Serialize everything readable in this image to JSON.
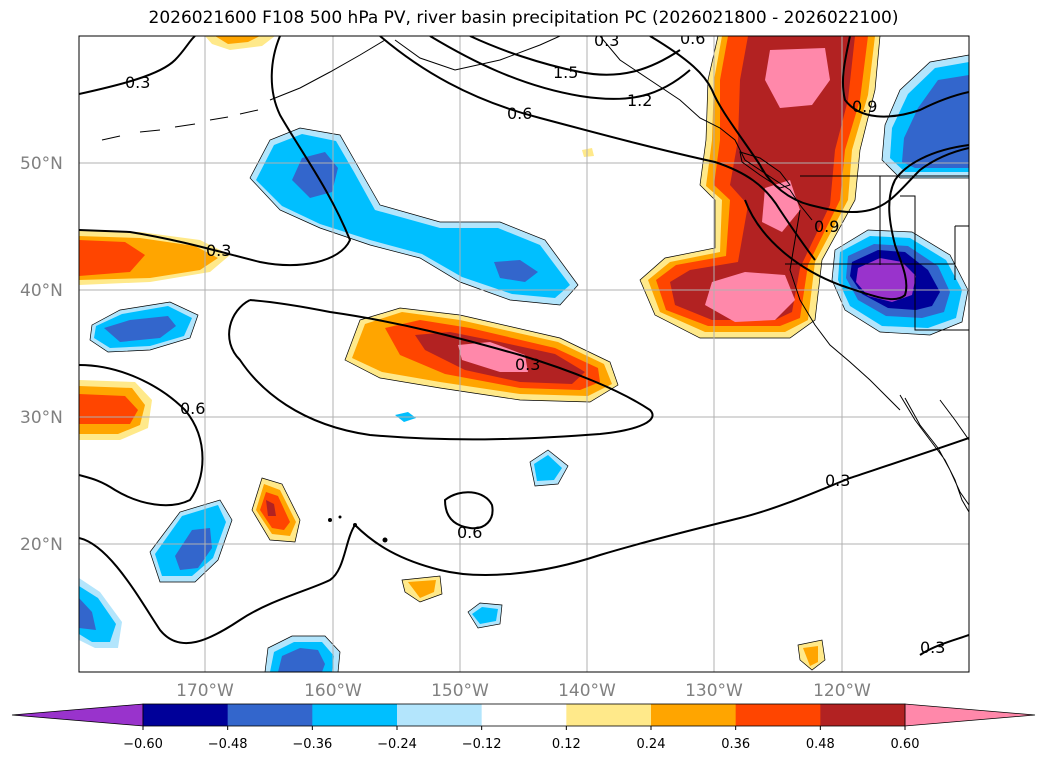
{
  "title": "2026021600 F108 500 hPa PV, river basin precipitation PC (2026021800 - 2026022100)",
  "lat_labels": [
    "50°N",
    "40°N",
    "30°N",
    "20°N"
  ],
  "lon_labels": [
    "170°W",
    "160°W",
    "150°W",
    "140°W",
    "130°W",
    "120°W"
  ],
  "contour_labels": [
    "0.3",
    "1.5",
    "1.2",
    "0.6",
    "0.9",
    "0.3",
    "0.9",
    "0.3",
    "0.6",
    "0.3",
    "0.6",
    "0.3",
    "0.3",
    "0.6"
  ],
  "colorbar": {
    "colors": [
      "#9933cc",
      "#000099",
      "#3366cc",
      "#00bfff",
      "#b3e5fc",
      "#ffffff",
      "#ffe98a",
      "#ffa500",
      "#ff4500",
      "#b22222",
      "#ff88aa"
    ],
    "tick_labels": [
      "−0.60",
      "−0.48",
      "−0.36",
      "−0.24",
      "−0.12",
      "0.12",
      "0.24",
      "0.36",
      "0.48",
      "0.60"
    ]
  }
}
